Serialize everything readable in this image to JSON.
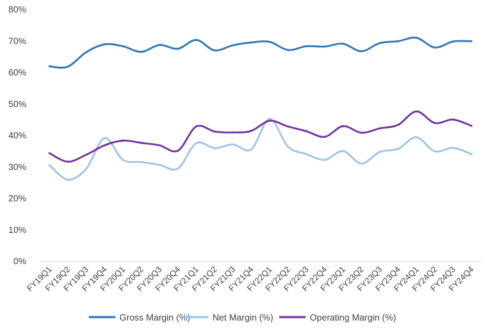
{
  "chart_data": {
    "type": "line",
    "title": "",
    "xlabel": "",
    "ylabel": "",
    "categories": [
      "FY19Q1",
      "FY19Q2",
      "FY19Q3",
      "FY19Q4",
      "FY20Q1",
      "FY20Q2",
      "FY20Q3",
      "FY20Q4",
      "FY21Q1",
      "FY21Q2",
      "FY21Q3",
      "FY21Q4",
      "FY22Q1",
      "FY22Q2",
      "FY22Q3",
      "FY22Q4",
      "FY23Q1",
      "FY23Q2",
      "FY23Q3",
      "FY23Q4",
      "FY24Q1",
      "FY24Q2",
      "FY24Q3",
      "FY24Q4"
    ],
    "yticks": [
      "0%",
      "10%",
      "20%",
      "30%",
      "40%",
      "50%",
      "60%",
      "70%",
      "80%"
    ],
    "ylim": [
      0,
      80
    ],
    "grid": false,
    "legend_position": "bottom",
    "series": [
      {
        "name": "Gross Margin (%)",
        "color": "#2E75B6",
        "values": [
          62.0,
          61.9,
          66.5,
          69.0,
          68.4,
          66.6,
          68.8,
          67.6,
          70.4,
          67.1,
          68.7,
          69.6,
          69.8,
          67.2,
          68.4,
          68.3,
          69.2,
          66.8,
          69.4,
          70.0,
          71.1,
          68.0,
          69.9,
          70.0
        ]
      },
      {
        "name": "Net Margin (%)",
        "color": "#9DC3E6",
        "values": [
          30.6,
          26.0,
          29.4,
          39.2,
          32.3,
          31.6,
          30.7,
          29.5,
          37.6,
          36.0,
          37.2,
          35.6,
          45.3,
          36.5,
          34.1,
          32.3,
          35.1,
          31.1,
          34.8,
          35.8,
          39.5,
          35.0,
          36.1,
          34.1
        ]
      },
      {
        "name": "Operating Margin (%)",
        "color": "#7030A0",
        "values": [
          34.4,
          31.7,
          33.9,
          36.9,
          38.4,
          37.7,
          36.9,
          35.2,
          42.9,
          41.3,
          41.0,
          41.5,
          44.7,
          42.9,
          41.4,
          39.6,
          43.0,
          40.9,
          42.3,
          43.4,
          47.7,
          44.0,
          45.1,
          43.1
        ]
      }
    ]
  }
}
